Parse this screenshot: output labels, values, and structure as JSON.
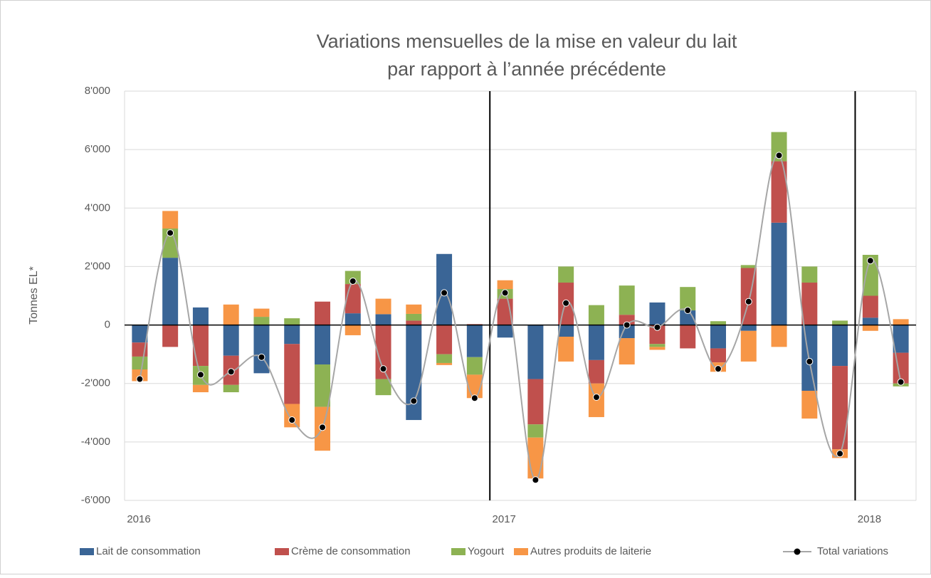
{
  "chart_data": {
    "type": "bar",
    "title": [
      "Variations mensuelles de la mise en valeur du lait",
      "par rapport à l’année précédente"
    ],
    "y_label": "Tonnes EL*",
    "categories": [
      "2016",
      null,
      null,
      null,
      null,
      null,
      null,
      null,
      null,
      null,
      null,
      null,
      "2017",
      null,
      null,
      null,
      null,
      null,
      null,
      null,
      null,
      null,
      null,
      null,
      "2018",
      null
    ],
    "stacked": true,
    "series": [
      {
        "name": "Lait de consommation",
        "color": "#3a6596",
        "values": [
          -600,
          2300,
          600,
          -1050,
          -1650,
          -650,
          -1350,
          400,
          370,
          -3250,
          2430,
          -1100,
          -430,
          -1850,
          -400,
          -1200,
          -450,
          770,
          500,
          -800,
          -200,
          3500,
          -2250,
          -1400,
          250,
          -950
        ]
      },
      {
        "name": "Crème de consommation",
        "color": "#c0504d",
        "values": [
          -480,
          -750,
          -1400,
          -1000,
          0,
          -2050,
          800,
          1000,
          -1850,
          150,
          -1000,
          30,
          900,
          -1550,
          1450,
          -800,
          350,
          -650,
          -800,
          -480,
          1950,
          2100,
          1450,
          -2850,
          750,
          -1050
        ]
      },
      {
        "name": "Yogourt",
        "color": "#8db253",
        "values": [
          -440,
          1000,
          -650,
          -250,
          280,
          230,
          -1450,
          450,
          -550,
          230,
          -300,
          -600,
          330,
          -450,
          550,
          680,
          1000,
          -100,
          800,
          130,
          100,
          1000,
          550,
          150,
          1400,
          -100
        ]
      },
      {
        "name": "Autres produits de laiterie",
        "color": "#f79646",
        "values": [
          -400,
          600,
          -250,
          700,
          280,
          -800,
          -1500,
          -350,
          530,
          320,
          -70,
          -800,
          300,
          -1400,
          -850,
          -1150,
          -900,
          -100,
          0,
          -320,
          -1050,
          -750,
          -950,
          -300,
          -200,
          200
        ]
      }
    ],
    "line": {
      "name": "Total variations",
      "color": "#a6a6a6",
      "marker_color": "#000000",
      "values": [
        -1850,
        3150,
        -1700,
        -1600,
        -1100,
        -3250,
        -3500,
        1500,
        -1500,
        -2600,
        1100,
        -2500,
        1100,
        -5300,
        750,
        -2470,
        0,
        -80,
        500,
        -1500,
        800,
        5800,
        -1250,
        -4400,
        2200,
        -1950
      ]
    },
    "ylim": [
      -6000,
      8000
    ],
    "yticks": [
      {
        "value": -6000,
        "label": "-6'000"
      },
      {
        "value": -4000,
        "label": "-4'000"
      },
      {
        "value": -2000,
        "label": "-2'000"
      },
      0,
      {
        "value": 2000,
        "label": "2'000"
      },
      {
        "value": 4000,
        "label": "4'000"
      },
      {
        "value": 6000,
        "label": "6'000"
      },
      {
        "value": 8000,
        "label": "8'000"
      }
    ],
    "grid": true,
    "legend": "bottom"
  }
}
